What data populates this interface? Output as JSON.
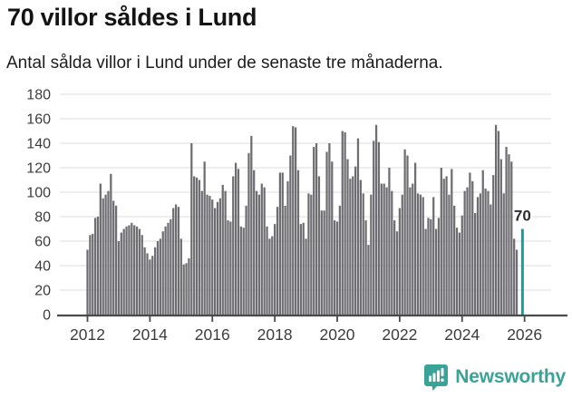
{
  "header": {
    "title": "70 villor såldes i Lund",
    "subtitle": "Antal sålda villor i Lund under de senaste tre månaderna."
  },
  "chart_data": {
    "type": "bar",
    "title": "70 villor såldes i Lund",
    "xlabel": "",
    "ylabel": "",
    "ylim": [
      0,
      180
    ],
    "y_ticks": [
      0,
      20,
      40,
      60,
      80,
      100,
      120,
      140,
      160,
      180
    ],
    "x_tick_labels": [
      "2012",
      "2014",
      "2016",
      "2018",
      "2020",
      "2022",
      "2024",
      "2026"
    ],
    "months_per_tick": 24,
    "grid": "horizontal",
    "bar_color": "#6e6e72",
    "axis_color": "#4a4a4a",
    "grid_color": "#e3e3e3",
    "tick_label_color": "#3c3c3c",
    "values": [
      53,
      65,
      66,
      79,
      80,
      107,
      95,
      98,
      101,
      115,
      93,
      89,
      60,
      67,
      70,
      72,
      73,
      75,
      73,
      72,
      70,
      65,
      55,
      50,
      45,
      48,
      55,
      60,
      62,
      68,
      72,
      75,
      78,
      87,
      90,
      88,
      62,
      41,
      42,
      46,
      140,
      113,
      112,
      110,
      101,
      125,
      98,
      97,
      94,
      87,
      92,
      95,
      106,
      101,
      77,
      76,
      113,
      124,
      119,
      72,
      71,
      89,
      132,
      146,
      118,
      101,
      98,
      107,
      104,
      72,
      62,
      64,
      74,
      88,
      116,
      116,
      89,
      109,
      130,
      154,
      153,
      118,
      74,
      75,
      62,
      99,
      98,
      137,
      140,
      113,
      85,
      85,
      133,
      140,
      125,
      77,
      76,
      89,
      150,
      149,
      127,
      111,
      113,
      121,
      144,
      110,
      99,
      77,
      57,
      98,
      142,
      155,
      141,
      107,
      107,
      104,
      120,
      101,
      77,
      68,
      87,
      98,
      135,
      130,
      104,
      107,
      124,
      99,
      98,
      96,
      70,
      79,
      78,
      96,
      70,
      79,
      120,
      111,
      113,
      98,
      119,
      89,
      71,
      67,
      81,
      101,
      104,
      116,
      109,
      83,
      96,
      99,
      118,
      103,
      101,
      90,
      114,
      155,
      150,
      127,
      99,
      137,
      131,
      125,
      62,
      53,
      70
    ],
    "highlight": {
      "index": 166,
      "value": 70,
      "label": "70",
      "color": "#189e9b",
      "gap_before": 1.2,
      "label_color": "#2e2e2e"
    }
  },
  "footer": {
    "brand": "Newsworthy",
    "brand_color": "#3aa397",
    "icon": "bar-chart-speech-bubble-icon"
  }
}
